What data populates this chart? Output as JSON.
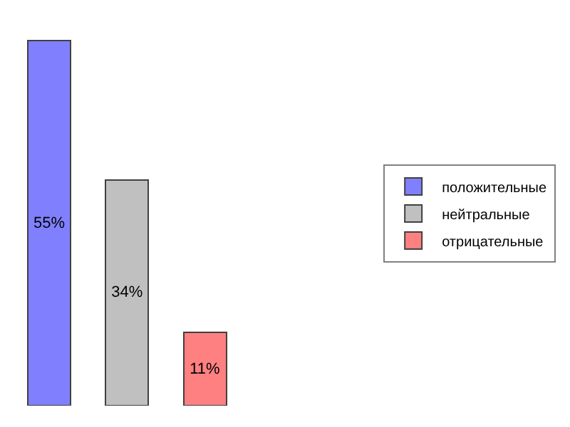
{
  "chart_data": {
    "type": "bar",
    "categories": [
      null,
      null,
      null
    ],
    "series": [
      {
        "name": "положительные",
        "color": "#8080ff",
        "values": [
          55,
          null,
          null
        ],
        "value_labels": [
          "55%",
          null,
          null
        ]
      },
      {
        "name": "нейтральные",
        "color": "#c0c0c0",
        "values": [
          null,
          34,
          null
        ],
        "value_labels": [
          null,
          "34%",
          null
        ]
      },
      {
        "name": "отрицательные",
        "color": "#ff8080",
        "values": [
          null,
          null,
          11
        ],
        "value_labels": [
          null,
          null,
          "11%"
        ]
      }
    ],
    "stacked": true,
    "legend": "right",
    "tick_labels": false
  }
}
